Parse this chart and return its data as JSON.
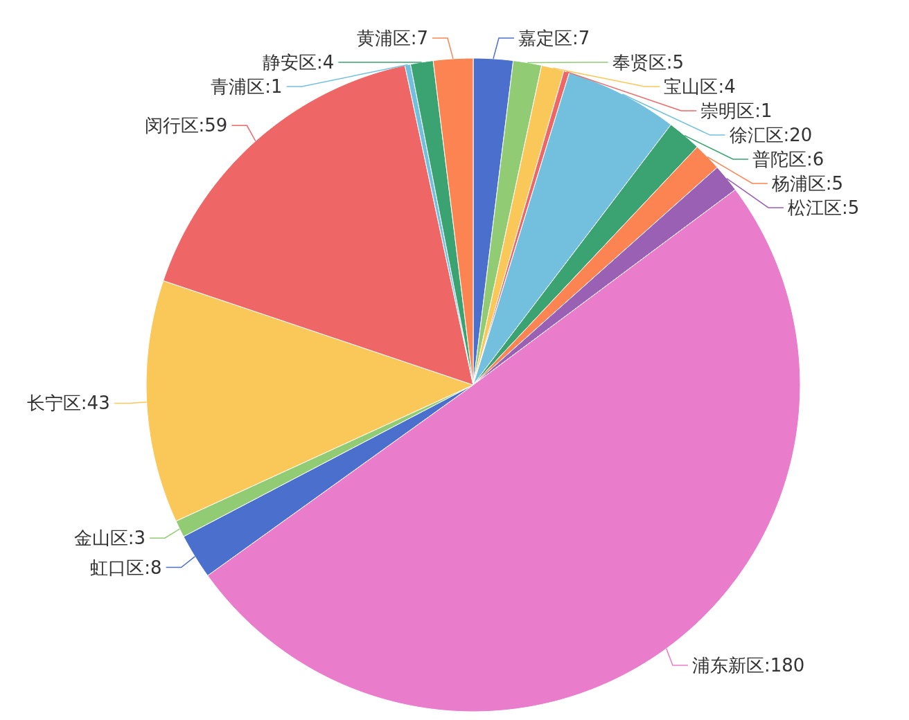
{
  "chart_data": {
    "type": "pie",
    "categories": [
      "嘉定区",
      "奉贤区",
      "宝山区",
      "崇明区",
      "徐汇区",
      "普陀区",
      "杨浦区",
      "松江区",
      "浦东新区",
      "虹口区",
      "金山区",
      "长宁区",
      "闵行区",
      "青浦区",
      "静安区",
      "黄浦区"
    ],
    "values": [
      7,
      5,
      4,
      1,
      20,
      6,
      5,
      5,
      180,
      8,
      3,
      43,
      59,
      1,
      4,
      7
    ],
    "value_labels": [
      ":7",
      ":5",
      ":4",
      ":1",
      ":20",
      ":6",
      ":5",
      ":5",
      ":180",
      ":8",
      ":3",
      ":43",
      ":59",
      ":1",
      ":4",
      ":7"
    ],
    "colors": [
      "#4a6fcc",
      "#91cc75",
      "#fac858",
      "#ee6666",
      "#73c0de",
      "#3ba272",
      "#fc8452",
      "#9a60b4",
      "#ea7ccc",
      "#4a6fcc",
      "#91cc75",
      "#fac858",
      "#ee6666",
      "#73c0de",
      "#3ba272",
      "#fc8452"
    ]
  }
}
